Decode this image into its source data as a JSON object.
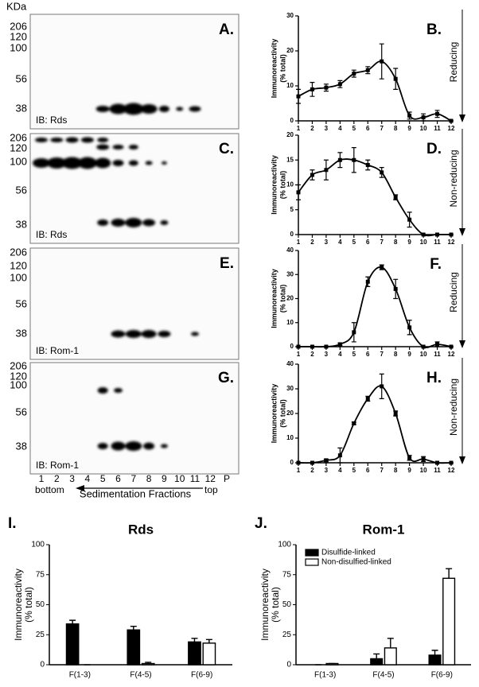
{
  "kda": "KDa",
  "blots": [
    {
      "label": "A.",
      "mw_labels": [
        "206",
        "120",
        "100",
        "56",
        "38"
      ],
      "ib": "IB: Rds"
    },
    {
      "label": "C.",
      "mw_labels": [
        "206",
        "120",
        "100",
        "56",
        "38"
      ],
      "ib": "IB: Rds"
    },
    {
      "label": "E.",
      "mw_labels": [
        "206",
        "120",
        "100",
        "56",
        "38"
      ],
      "ib": "IB: Rom-1"
    },
    {
      "label": "G.",
      "mw_labels": [
        "206",
        "120",
        "100",
        "56",
        "38"
      ],
      "ib": "IB: Rom-1"
    }
  ],
  "lanes": [
    "1",
    "2",
    "3",
    "4",
    "5",
    "6",
    "7",
    "8",
    "9",
    "10",
    "11",
    "12",
    "P"
  ],
  "bottom": "bottom",
  "top": "top",
  "fractions_label": "Sedimentation Fractions",
  "chart_data": [
    {
      "type": "line",
      "panel_label": "B.",
      "condition": "Reducing",
      "y_label": [
        "Immunoreactivity",
        "(% total)"
      ],
      "x": [
        1,
        2,
        3,
        4,
        5,
        6,
        7,
        8,
        9,
        10,
        11,
        12
      ],
      "xlim": [
        1,
        12
      ],
      "xticks": [
        1,
        2,
        3,
        4,
        5,
        6,
        7,
        8,
        9,
        10,
        11,
        12
      ],
      "values": [
        7,
        9,
        9.5,
        10.5,
        13.5,
        14.5,
        17,
        12,
        1.5,
        1,
        2,
        0
      ],
      "errors": [
        2,
        2,
        1,
        1,
        1,
        1,
        5,
        3,
        1,
        1,
        1,
        0
      ],
      "ylim": [
        0,
        30
      ],
      "yticks": [
        0,
        10,
        20,
        30
      ],
      "color": "#000000"
    },
    {
      "type": "line",
      "panel_label": "D.",
      "condition": "Non-reducing",
      "y_label": [
        "Immunoreactivity",
        "(% total)"
      ],
      "x": [
        1,
        2,
        3,
        4,
        5,
        6,
        7,
        8,
        9,
        10,
        11,
        12
      ],
      "xlim": [
        1,
        12
      ],
      "xticks": [
        1,
        2,
        3,
        4,
        5,
        6,
        7,
        8,
        9,
        10,
        11,
        12
      ],
      "values": [
        8.5,
        12,
        13,
        15,
        15,
        14,
        12.5,
        7.5,
        3,
        0,
        0,
        0
      ],
      "errors": [
        1.5,
        1,
        2,
        1.5,
        2.5,
        1,
        1,
        0.5,
        1.5,
        0,
        0,
        0
      ],
      "ylim": [
        0,
        20
      ],
      "yticks": [
        0,
        5,
        10,
        15,
        20
      ],
      "color": "#000000"
    },
    {
      "type": "line",
      "panel_label": "F.",
      "condition": "Reducing",
      "y_label": [
        "Immunoreactivity",
        "(% total)"
      ],
      "x": [
        1,
        2,
        3,
        4,
        5,
        6,
        7,
        8,
        9,
        10,
        11,
        12
      ],
      "xlim": [
        1,
        12
      ],
      "xticks": [
        1,
        2,
        3,
        4,
        5,
        6,
        7,
        8,
        9,
        10,
        11,
        12
      ],
      "values": [
        0,
        0,
        0,
        1,
        6,
        27,
        33,
        24,
        8,
        0,
        1,
        0
      ],
      "errors": [
        0,
        0,
        0,
        0.5,
        4,
        2,
        1,
        4,
        3,
        0,
        1,
        0
      ],
      "ylim": [
        0,
        40
      ],
      "yticks": [
        0,
        10,
        20,
        30,
        40
      ],
      "color": "#000000"
    },
    {
      "type": "line",
      "panel_label": "H.",
      "condition": "Non-reducing",
      "y_label": [
        "Immunoreactivity",
        "(% total)"
      ],
      "x": [
        1,
        2,
        3,
        4,
        5,
        6,
        7,
        8,
        9,
        10,
        11,
        12
      ],
      "xlim": [
        1,
        12
      ],
      "xticks": [
        1,
        2,
        3,
        4,
        5,
        6,
        7,
        8,
        9,
        10,
        11,
        12
      ],
      "values": [
        0,
        0,
        1,
        3,
        16,
        26,
        31,
        20,
        2,
        1.5,
        0,
        0
      ],
      "errors": [
        0,
        0,
        0.5,
        3,
        0.5,
        1,
        5,
        1,
        1,
        1,
        0,
        0
      ],
      "ylim": [
        0,
        40
      ],
      "yticks": [
        0,
        10,
        20,
        30,
        40
      ],
      "color": "#000000"
    },
    {
      "type": "bar",
      "panel_label": "I.",
      "title": "Rds",
      "y_label": [
        "Immunoreactivity",
        "(% total)"
      ],
      "categories": [
        "F(1-3)",
        "F(4-5)",
        "F(6-9)"
      ],
      "series": [
        {
          "color": "#000000",
          "values": [
            34,
            29,
            19
          ],
          "errors": [
            3,
            3,
            3
          ]
        },
        {
          "color": "#ffffff",
          "values": [
            0,
            1,
            18
          ],
          "errors": [
            0,
            1,
            3
          ]
        }
      ],
      "ylim": [
        0,
        100
      ],
      "yticks": [
        0,
        25,
        50,
        75,
        100
      ]
    },
    {
      "type": "bar",
      "panel_label": "J.",
      "title": "Rom-1",
      "y_label": [
        "Immunoreactivity",
        "(% total)"
      ],
      "categories": [
        "F(1-3)",
        "F(4-5)",
        "F(6-9)"
      ],
      "series": [
        {
          "name": "Disulfide-linked",
          "color": "#000000",
          "values": [
            0,
            5,
            8
          ],
          "errors": [
            0,
            4,
            4
          ]
        },
        {
          "name": "Non-disulfied-linked",
          "color": "#ffffff",
          "values": [
            1,
            14,
            72
          ],
          "errors": [
            0,
            8,
            8
          ]
        }
      ],
      "ylim": [
        0,
        100
      ],
      "yticks": [
        0,
        25,
        50,
        75,
        100
      ]
    }
  ]
}
